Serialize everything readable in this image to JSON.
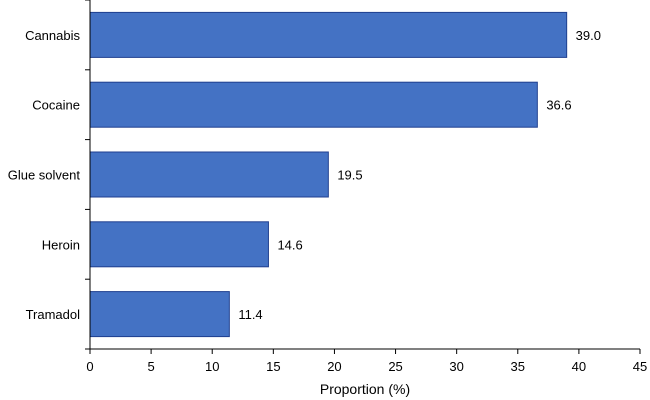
{
  "chart_data": {
    "type": "bar",
    "orientation": "horizontal",
    "categories": [
      "Cannabis",
      "Cocaine",
      "Glue solvent",
      "Heroin",
      "Tramadol"
    ],
    "values": [
      39.0,
      36.6,
      19.5,
      14.6,
      11.4
    ],
    "value_labels": [
      "39.0",
      "36.6",
      "19.5",
      "14.6",
      "11.4"
    ],
    "xlabel": "Proportion (%)",
    "ylabel": "",
    "xlim": [
      0,
      45
    ],
    "xticks": [
      0,
      5,
      10,
      15,
      20,
      25,
      30,
      35,
      40,
      45
    ],
    "grid": false,
    "bar_color": "#4472c4",
    "bar_edge_color": "#1f3f8f"
  }
}
